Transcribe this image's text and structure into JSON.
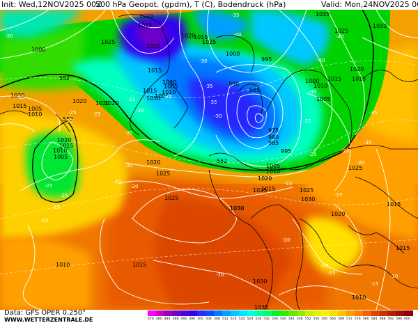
{
  "header": {
    "init": "Init: Wed,12NOV2025 00Z",
    "title": "500 hPa Geopot. (gpdm), T (C), Bodendruck (hPa)",
    "valid": "Valid: Mon,24NOV2025 06Z"
  },
  "footer": {
    "source": "Data: GFS OPER 0.250°",
    "site": "WWW.WETTERZENTRALE.DE"
  },
  "colorbar": {
    "labels": [
      "476",
      "480",
      "484",
      "488",
      "492",
      "496",
      "500",
      "504",
      "508",
      "512",
      "516",
      "520",
      "524",
      "528",
      "532",
      "536",
      "540",
      "544",
      "548",
      "552",
      "556",
      "560",
      "564",
      "568",
      "572",
      "576",
      "580",
      "584",
      "588",
      "592",
      "596",
      "600"
    ],
    "colors": [
      "#fe00fe",
      "#c800c8",
      "#9600b4",
      "#6e00c8",
      "#5000dc",
      "#3200f0",
      "#2828ff",
      "#0050ff",
      "#0078ff",
      "#00a0ff",
      "#00c8ff",
      "#00e6ff",
      "#00ffe0",
      "#00ffa0",
      "#00ff64",
      "#00f032",
      "#32e600",
      "#64e600",
      "#96e600",
      "#c8ee00",
      "#e6f000",
      "#fff000",
      "#ffdc00",
      "#ffc000",
      "#ffa000",
      "#ff8000",
      "#f06400",
      "#dc4600",
      "#c83200",
      "#b42000",
      "#a01000",
      "#8c0000"
    ]
  },
  "pressure_labels": [
    "1020",
    "1015",
    "1010",
    "1025",
    "1020",
    "1015",
    "1000",
    "1005",
    "1010",
    "1015",
    "1020",
    "1030",
    "1025",
    "1015",
    "1010",
    "1005",
    "1000",
    "995",
    "990",
    "985",
    "980",
    "975",
    "985",
    "995",
    "1005",
    "1010",
    "1015",
    "1020",
    "1025",
    "1030",
    "1030",
    "1035",
    "1025",
    "1020",
    "1015",
    "1010",
    "1005",
    "1000",
    "1020",
    "1015",
    "1010",
    "1005",
    "1030",
    "1015",
    "1010",
    "1020",
    "1025",
    "1030",
    "1035",
    "1025",
    "1030",
    "1010",
    "1015",
    "1020",
    "1025",
    "1030",
    "1020",
    "1015",
    "1005",
    "1010",
    "1015",
    "1020",
    "1015",
    "1025"
  ],
  "geopotential_labels": [
    "552",
    "552",
    "552",
    "576"
  ],
  "temperature_labels": [
    "-35",
    "-30",
    "-30",
    "-30",
    "-25",
    "-20",
    "-25",
    "-25",
    "-20",
    "-15",
    "-20",
    "-10",
    "-15",
    "-25",
    "-35",
    "-30",
    "-25",
    "-20",
    "-15",
    "-30",
    "-40",
    "-40",
    "-40",
    "-35",
    "-35",
    "-15",
    "-20",
    "-15",
    "-10",
    "-15",
    "-20",
    "-25",
    "-20",
    "-25",
    "-15",
    "-20",
    "-25",
    "-30",
    "-35"
  ]
}
